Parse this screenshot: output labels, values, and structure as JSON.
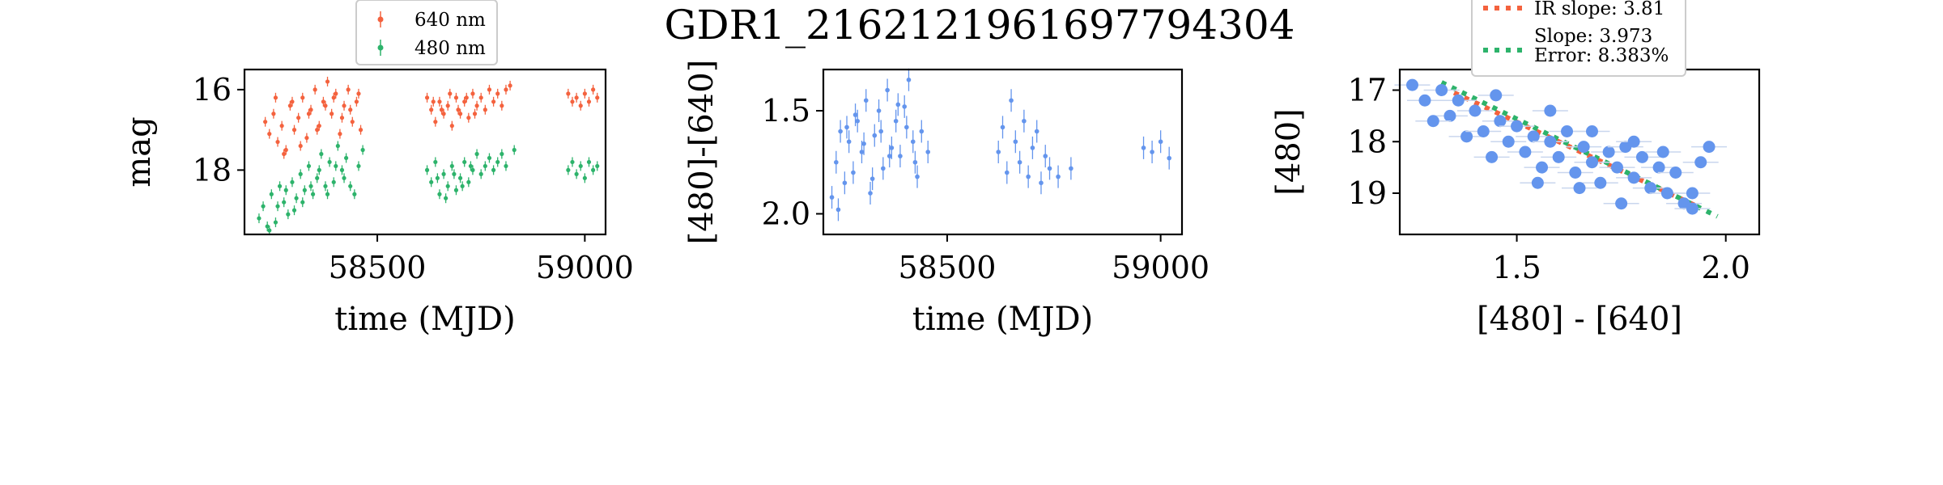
{
  "title": "GDR1_2162121961697794304",
  "colors": {
    "red": "#f4623e",
    "green": "#2db36b",
    "blue": "#6495ed"
  },
  "chart_data": [
    {
      "type": "scatter",
      "xlabel": "time (MJD)",
      "ylabel": "mag",
      "xlim": [
        58180,
        59050
      ],
      "ylim": [
        19.6,
        15.5
      ],
      "xticks": [
        58500,
        59000
      ],
      "xtick_labels": [
        "58500",
        "59000"
      ],
      "yticks": [
        16,
        18
      ],
      "ytick_labels": [
        "16",
        "18"
      ],
      "legend": {
        "placement": "above-left",
        "entries": [
          "640 nm",
          "480 nm"
        ]
      },
      "series": [
        {
          "name": "640 nm",
          "color": "#f4623e",
          "points": [
            [
              58230,
              16.8
            ],
            [
              58240,
              17.1
            ],
            [
              58250,
              16.6
            ],
            [
              58260,
              17.3
            ],
            [
              58270,
              16.9
            ],
            [
              58280,
              17.5
            ],
            [
              58290,
              16.4
            ],
            [
              58300,
              17.0
            ],
            [
              58310,
              16.7
            ],
            [
              58320,
              16.2
            ],
            [
              58330,
              17.2
            ],
            [
              58340,
              16.5
            ],
            [
              58350,
              16.0
            ],
            [
              58360,
              16.9
            ],
            [
              58370,
              16.3
            ],
            [
              58380,
              15.8
            ],
            [
              58390,
              16.6
            ],
            [
              58400,
              16.1
            ],
            [
              58410,
              17.1
            ],
            [
              58420,
              16.4
            ],
            [
              58430,
              16.0
            ],
            [
              58440,
              16.8
            ],
            [
              58450,
              16.3
            ],
            [
              58460,
              17.0
            ],
            [
              58255,
              16.2
            ],
            [
              58275,
              17.6
            ],
            [
              58295,
              16.3
            ],
            [
              58315,
              17.4
            ],
            [
              58335,
              16.6
            ],
            [
              58355,
              17.0
            ],
            [
              58375,
              16.4
            ],
            [
              58395,
              16.2
            ],
            [
              58415,
              16.7
            ],
            [
              58435,
              16.5
            ],
            [
              58455,
              16.1
            ],
            [
              58620,
              16.2
            ],
            [
              58630,
              16.5
            ],
            [
              58640,
              16.8
            ],
            [
              58650,
              16.3
            ],
            [
              58660,
              16.6
            ],
            [
              58670,
              16.4
            ],
            [
              58680,
              16.9
            ],
            [
              58690,
              16.2
            ],
            [
              58700,
              16.6
            ],
            [
              58710,
              16.3
            ],
            [
              58720,
              16.7
            ],
            [
              58730,
              16.1
            ],
            [
              58740,
              16.4
            ],
            [
              58750,
              16.2
            ],
            [
              58760,
              16.5
            ],
            [
              58770,
              16.0
            ],
            [
              58780,
              16.3
            ],
            [
              58790,
              16.1
            ],
            [
              58800,
              16.4
            ],
            [
              58810,
              16.0
            ],
            [
              58820,
              15.9
            ],
            [
              58635,
              16.3
            ],
            [
              58655,
              16.5
            ],
            [
              58675,
              16.1
            ],
            [
              58695,
              16.5
            ],
            [
              58715,
              16.2
            ],
            [
              58735,
              16.6
            ],
            [
              58960,
              16.1
            ],
            [
              58970,
              16.3
            ],
            [
              58980,
              16.2
            ],
            [
              58990,
              16.4
            ],
            [
              59000,
              16.1
            ],
            [
              59010,
              16.3
            ],
            [
              59020,
              16.0
            ],
            [
              59030,
              16.2
            ]
          ]
        },
        {
          "name": "480 nm",
          "color": "#2db36b",
          "points": [
            [
              58215,
              19.2
            ],
            [
              58225,
              18.9
            ],
            [
              58235,
              19.4
            ],
            [
              58245,
              18.6
            ],
            [
              58255,
              19.3
            ],
            [
              58265,
              18.4
            ],
            [
              58275,
              18.8
            ],
            [
              58285,
              19.1
            ],
            [
              58295,
              18.3
            ],
            [
              58305,
              18.7
            ],
            [
              58315,
              18.1
            ],
            [
              58325,
              18.5
            ],
            [
              58335,
              17.9
            ],
            [
              58345,
              18.6
            ],
            [
              58355,
              18.2
            ],
            [
              58365,
              17.6
            ],
            [
              58375,
              18.4
            ],
            [
              58385,
              17.8
            ],
            [
              58395,
              18.3
            ],
            [
              58405,
              17.4
            ],
            [
              58415,
              18.0
            ],
            [
              58425,
              17.7
            ],
            [
              58435,
              18.4
            ],
            [
              58445,
              18.6
            ],
            [
              58455,
              17.9
            ],
            [
              58465,
              17.5
            ],
            [
              58240,
              19.5
            ],
            [
              58260,
              18.9
            ],
            [
              58280,
              18.5
            ],
            [
              58300,
              19.0
            ],
            [
              58320,
              18.8
            ],
            [
              58340,
              18.4
            ],
            [
              58360,
              18.0
            ],
            [
              58380,
              18.6
            ],
            [
              58400,
              17.9
            ],
            [
              58420,
              18.2
            ],
            [
              58620,
              18.0
            ],
            [
              58630,
              18.3
            ],
            [
              58640,
              17.8
            ],
            [
              58650,
              18.6
            ],
            [
              58660,
              18.1
            ],
            [
              58670,
              18.4
            ],
            [
              58680,
              17.9
            ],
            [
              58690,
              18.5
            ],
            [
              58700,
              18.2
            ],
            [
              58710,
              17.8
            ],
            [
              58720,
              18.3
            ],
            [
              58730,
              18.0
            ],
            [
              58740,
              17.6
            ],
            [
              58750,
              18.1
            ],
            [
              58760,
              17.9
            ],
            [
              58770,
              17.7
            ],
            [
              58780,
              18.0
            ],
            [
              58790,
              17.8
            ],
            [
              58800,
              17.6
            ],
            [
              58810,
              17.9
            ],
            [
              58830,
              17.5
            ],
            [
              58645,
              18.2
            ],
            [
              58665,
              18.7
            ],
            [
              58685,
              18.1
            ],
            [
              58705,
              18.4
            ],
            [
              58725,
              17.9
            ],
            [
              58960,
              18.0
            ],
            [
              58970,
              17.8
            ],
            [
              58980,
              18.1
            ],
            [
              58990,
              17.9
            ],
            [
              59000,
              18.2
            ],
            [
              59010,
              17.8
            ],
            [
              59020,
              18.0
            ],
            [
              59030,
              17.9
            ]
          ]
        }
      ]
    },
    {
      "type": "scatter",
      "xlabel": "time (MJD)",
      "ylabel": "[480]-[640]",
      "xlim": [
        58210,
        59050
      ],
      "ylim": [
        2.1,
        1.3
      ],
      "xticks": [
        58500,
        59000
      ],
      "xtick_labels": [
        "58500",
        "59000"
      ],
      "yticks": [
        1.5,
        2.0
      ],
      "ytick_labels": [
        "1.5",
        "2.0"
      ],
      "series": [
        {
          "color": "#6495ed",
          "points": [
            [
              58230,
              1.92
            ],
            [
              58240,
              1.75
            ],
            [
              58250,
              1.6
            ],
            [
              58260,
              1.85
            ],
            [
              58270,
              1.65
            ],
            [
              58280,
              1.8
            ],
            [
              58290,
              1.55
            ],
            [
              58300,
              1.7
            ],
            [
              58310,
              1.45
            ],
            [
              58320,
              1.9
            ],
            [
              58330,
              1.62
            ],
            [
              58340,
              1.5
            ],
            [
              58350,
              1.78
            ],
            [
              58360,
              1.4
            ],
            [
              58370,
              1.68
            ],
            [
              58380,
              1.55
            ],
            [
              58390,
              1.72
            ],
            [
              58400,
              1.48
            ],
            [
              58410,
              1.35
            ],
            [
              58420,
              1.65
            ],
            [
              58430,
              1.82
            ],
            [
              58440,
              1.6
            ],
            [
              58455,
              1.7
            ],
            [
              58245,
              1.98
            ],
            [
              58265,
              1.58
            ],
            [
              58285,
              1.52
            ],
            [
              58305,
              1.66
            ],
            [
              58325,
              1.83
            ],
            [
              58345,
              1.6
            ],
            [
              58365,
              1.72
            ],
            [
              58385,
              1.47
            ],
            [
              58405,
              1.58
            ],
            [
              58425,
              1.75
            ],
            [
              58620,
              1.7
            ],
            [
              58630,
              1.58
            ],
            [
              58640,
              1.8
            ],
            [
              58650,
              1.45
            ],
            [
              58660,
              1.65
            ],
            [
              58670,
              1.75
            ],
            [
              58680,
              1.55
            ],
            [
              58690,
              1.82
            ],
            [
              58700,
              1.68
            ],
            [
              58710,
              1.6
            ],
            [
              58720,
              1.85
            ],
            [
              58730,
              1.72
            ],
            [
              58740,
              1.78
            ],
            [
              58760,
              1.82
            ],
            [
              58790,
              1.78
            ],
            [
              58960,
              1.68
            ],
            [
              58980,
              1.7
            ],
            [
              59000,
              1.65
            ],
            [
              59020,
              1.73
            ]
          ]
        }
      ]
    },
    {
      "type": "scatter",
      "xlabel": "[480] - [640]",
      "ylabel": "[480]",
      "xlim": [
        1.22,
        2.08
      ],
      "ylim": [
        19.8,
        16.6
      ],
      "xticks": [
        1.5,
        2.0
      ],
      "xtick_labels": [
        "1.5",
        "2.0"
      ],
      "yticks": [
        17,
        18,
        19
      ],
      "ytick_labels": [
        "17",
        "18",
        "19"
      ],
      "legend": {
        "placement": "above",
        "entries": [
          "IR slope: 3.81",
          "Slope: 3.973\nError: 8.383%"
        ]
      },
      "lines": [
        {
          "name": "IR slope: 3.81",
          "color": "#f4623e",
          "from": [
            1.35,
            17.05
          ],
          "to": [
            1.93,
            19.25
          ]
        },
        {
          "name": "Slope: 3.973\nError: 8.383%",
          "color": "#2db36b",
          "from": [
            1.32,
            16.85
          ],
          "to": [
            1.98,
            19.45
          ]
        }
      ],
      "series": [
        {
          "color": "#6495ed",
          "points": [
            [
              1.28,
              17.2
            ],
            [
              1.32,
              17.0
            ],
            [
              1.34,
              17.5
            ],
            [
              1.36,
              17.2
            ],
            [
              1.38,
              17.9
            ],
            [
              1.4,
              17.4
            ],
            [
              1.42,
              17.8
            ],
            [
              1.44,
              18.3
            ],
            [
              1.46,
              17.6
            ],
            [
              1.48,
              18.0
            ],
            [
              1.5,
              17.7
            ],
            [
              1.52,
              18.2
            ],
            [
              1.54,
              17.9
            ],
            [
              1.56,
              18.5
            ],
            [
              1.58,
              18.0
            ],
            [
              1.6,
              18.3
            ],
            [
              1.62,
              17.8
            ],
            [
              1.64,
              18.6
            ],
            [
              1.66,
              18.1
            ],
            [
              1.68,
              18.4
            ],
            [
              1.7,
              18.8
            ],
            [
              1.72,
              18.2
            ],
            [
              1.74,
              18.5
            ],
            [
              1.76,
              18.1
            ],
            [
              1.78,
              18.7
            ],
            [
              1.8,
              18.3
            ],
            [
              1.82,
              18.9
            ],
            [
              1.84,
              18.5
            ],
            [
              1.86,
              19.0
            ],
            [
              1.88,
              18.6
            ],
            [
              1.9,
              19.2
            ],
            [
              1.92,
              19.0
            ],
            [
              1.94,
              18.4
            ],
            [
              1.96,
              18.1
            ],
            [
              1.3,
              17.6
            ],
            [
              1.45,
              17.1
            ],
            [
              1.55,
              18.8
            ],
            [
              1.65,
              18.9
            ],
            [
              1.75,
              19.2
            ],
            [
              1.85,
              18.2
            ],
            [
              1.92,
              19.3
            ],
            [
              1.25,
              16.9
            ],
            [
              1.58,
              17.4
            ],
            [
              1.68,
              17.8
            ],
            [
              1.78,
              18.0
            ]
          ]
        }
      ]
    }
  ]
}
